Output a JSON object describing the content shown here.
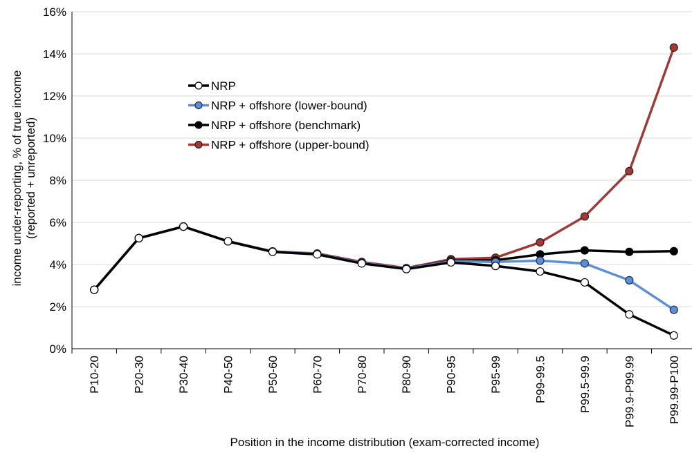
{
  "chart_data": {
    "type": "line",
    "title": "",
    "xlabel": "Position in the income distribution (exam-corrected income)",
    "ylabel_line1": "income under-reporting, % of true income",
    "ylabel_line2": "(reported + unreported)",
    "ylim": [
      0,
      16
    ],
    "y_ticks": [
      0,
      2,
      4,
      6,
      8,
      10,
      12,
      14,
      16
    ],
    "y_tick_format": "percent",
    "grid": "horizontal",
    "legend_position": "upper-left-center",
    "categories": [
      "P10-20",
      "P20-30",
      "P30-40",
      "P40-50",
      "P50-60",
      "P60-70",
      "P70-80",
      "P80-90",
      "P90-95",
      "P95-99",
      "P99-99.5",
      "P99.5-99.9",
      "P99.9-P99.99",
      "P99.99-P100"
    ],
    "series": [
      {
        "name": "NRP + offshore (upper-bound)",
        "line_color": "#9e3a37",
        "marker_fill": "#9e3a37",
        "marker_stroke": "#3a1a18",
        "values": [
          2.8,
          5.25,
          5.8,
          5.1,
          4.62,
          4.52,
          4.12,
          3.83,
          4.25,
          4.32,
          5.05,
          6.28,
          8.43,
          14.3
        ]
      },
      {
        "name": "NRP + offshore (benchmark)",
        "line_color": "#000000",
        "marker_fill": "#000000",
        "marker_stroke": "#000000",
        "values": [
          2.8,
          5.25,
          5.8,
          5.1,
          4.62,
          4.5,
          4.08,
          3.8,
          4.18,
          4.2,
          4.48,
          4.67,
          4.6,
          4.63
        ]
      },
      {
        "name": "NRP + offshore (lower-bound)",
        "line_color": "#5b8fd6",
        "marker_fill": "#5b8fd6",
        "marker_stroke": "#1f2f4a",
        "values": [
          2.8,
          5.25,
          5.8,
          5.1,
          4.62,
          4.5,
          4.08,
          3.8,
          4.15,
          4.12,
          4.18,
          4.05,
          3.25,
          1.85
        ]
      },
      {
        "name": "NRP",
        "line_color": "#000000",
        "marker_fill": "#ffffff",
        "marker_stroke": "#000000",
        "values": [
          2.8,
          5.25,
          5.8,
          5.1,
          4.6,
          4.48,
          4.05,
          3.78,
          4.1,
          3.93,
          3.67,
          3.15,
          1.63,
          0.63
        ]
      }
    ],
    "legend_order": [
      "NRP",
      "NRP + offshore (lower-bound)",
      "NRP + offshore (benchmark)",
      "NRP + offshore (upper-bound)"
    ]
  }
}
